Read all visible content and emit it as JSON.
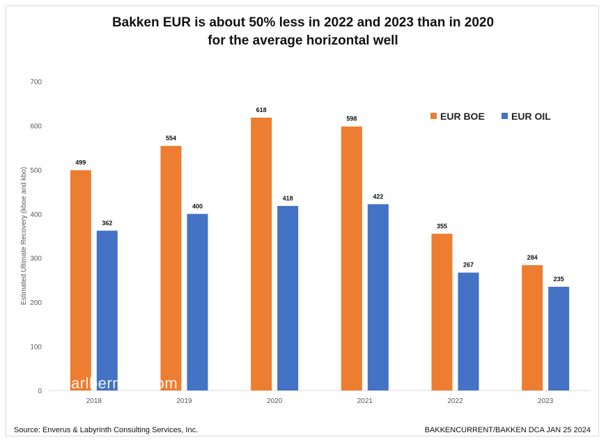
{
  "title_line1": "Bakken EUR is about 50% less in 2022 and 2023 than in 2020",
  "title_line2": "for the average horizontal well",
  "footer_source": "Source:  Enverus & Labyrinth Consulting Services, Inc.",
  "footer_ref": "BAKKENCURRENT/BAKKEN DCA JAN 25 2024",
  "watermark": "arlberman.com",
  "colors": {
    "boe": "#ED7D31",
    "oil": "#4472C4",
    "axis": "#d9d9d9",
    "text": "#595959"
  },
  "chart_data": {
    "type": "bar",
    "categories": [
      "2018",
      "2019",
      "2020",
      "2021",
      "2022",
      "2023"
    ],
    "series": [
      {
        "name": "EUR BOE",
        "values": [
          499,
          554,
          618,
          598,
          355,
          284
        ]
      },
      {
        "name": "EUR OIL",
        "values": [
          362,
          400,
          418,
          422,
          267,
          235
        ]
      }
    ],
    "ylabel": "Estimated Ultimate Recovery (kboe and kbo)",
    "ylim": [
      0,
      700
    ],
    "yticks": [
      0,
      100,
      200,
      300,
      400,
      500,
      600,
      700
    ],
    "grid": false,
    "legend_position": "top-right"
  }
}
